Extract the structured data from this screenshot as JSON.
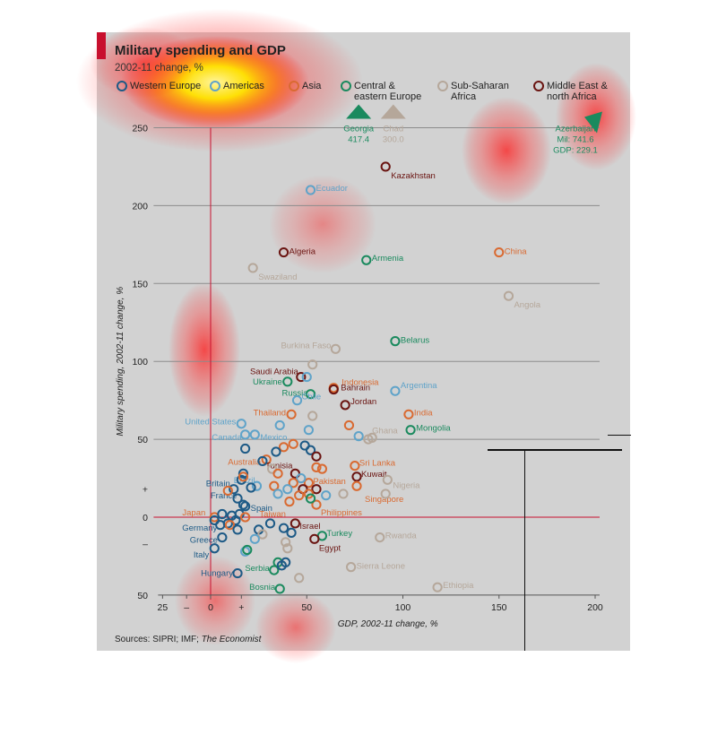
{
  "title": "Military spending and GDP",
  "subtitle": "2002-11 change, %",
  "source": {
    "prefix": "Sources: SIPRI; IMF; ",
    "italic": "The Economist"
  },
  "colors": {
    "western_europe": "#1d5a86",
    "americas": "#5fa3c9",
    "asia": "#d96a31",
    "central_eastern_europe": "#1a8a5e",
    "sub_saharan_africa": "#b5a79a",
    "middle_east_north_africa": "#6a1411",
    "gridline": "#8c8c8c",
    "zero_line": "#c8102e",
    "panel": "#d2d2d2"
  },
  "legend": [
    {
      "key": "western_europe",
      "label": "Western Europe"
    },
    {
      "key": "americas",
      "label": "Americas"
    },
    {
      "key": "asia",
      "label": "Asia"
    },
    {
      "key": "central_eastern_europe",
      "label": "Central & eastern Europe"
    },
    {
      "key": "sub_saharan_africa",
      "label": "Sub-Saharan Africa"
    },
    {
      "key": "middle_east_north_africa",
      "label": "Middle East & north Africa"
    }
  ],
  "chart_data": {
    "type": "scatter",
    "title": "Military spending and GDP",
    "subtitle": "2002-11 change, %",
    "xlabel": "GDP, 2002-11 change, %",
    "ylabel": "Military spending, 2002-11 change, %",
    "xlim": [
      -25,
      200
    ],
    "ylim": [
      -50,
      250
    ],
    "x_ticks": [
      {
        "value": -25,
        "label": "25"
      },
      {
        "value": -12.5,
        "label": "–"
      },
      {
        "value": 0,
        "label": "0"
      },
      {
        "value": 16,
        "label": "+"
      },
      {
        "value": 50,
        "label": "50"
      },
      {
        "value": 100,
        "label": "100"
      },
      {
        "value": 150,
        "label": "150"
      },
      {
        "value": 200,
        "label": "200"
      }
    ],
    "y_ticks": [
      {
        "value": 250,
        "label": "250"
      },
      {
        "value": 200,
        "label": "200"
      },
      {
        "value": 150,
        "label": "150"
      },
      {
        "value": 100,
        "label": "100"
      },
      {
        "value": 50,
        "label": "50"
      },
      {
        "value": 18,
        "label": "+"
      },
      {
        "value": 0,
        "label": "0"
      },
      {
        "value": -17,
        "label": "–"
      },
      {
        "value": -50,
        "label": "50"
      }
    ],
    "gridlines_y": [
      250,
      200,
      150,
      100,
      50
    ],
    "offscale": [
      {
        "name": "Georgia",
        "value": "417.4",
        "x": 77,
        "region": "central_eastern_europe",
        "direction": "up"
      },
      {
        "name": "Chad",
        "value": "300.0",
        "x": 95,
        "region": "sub_saharan_africa",
        "direction": "up"
      },
      {
        "name": "Azerbaijan",
        "mil": "Mil: 741.6",
        "gdp": "GDP: 229.1",
        "x": 200,
        "region": "central_eastern_europe",
        "direction": "up-right"
      }
    ],
    "points": [
      {
        "name": "Kazakhstan",
        "x": 91,
        "y": 225,
        "region": "middle_east_north_africa"
      },
      {
        "name": "Ecuador",
        "x": 52,
        "y": 210,
        "region": "americas"
      },
      {
        "name": "Algeria",
        "x": 38,
        "y": 170,
        "region": "middle_east_north_africa"
      },
      {
        "name": "Armenia",
        "x": 81,
        "y": 165,
        "region": "central_eastern_europe"
      },
      {
        "name": "China",
        "x": 150,
        "y": 170,
        "region": "asia"
      },
      {
        "name": "Swaziland",
        "x": 22,
        "y": 160,
        "region": "sub_saharan_africa"
      },
      {
        "name": "Angola",
        "x": 155,
        "y": 142,
        "region": "sub_saharan_africa"
      },
      {
        "name": "Belarus",
        "x": 96,
        "y": 113,
        "region": "central_eastern_europe"
      },
      {
        "name": "Burkina Faso",
        "x": 65,
        "y": 108,
        "region": "sub_saharan_africa"
      },
      {
        "name": "Saudi Arabia",
        "x": 47,
        "y": 90,
        "region": "middle_east_north_africa"
      },
      {
        "name": "Indonesia",
        "x": 64,
        "y": 83,
        "region": "asia"
      },
      {
        "name": "Ukraine",
        "x": 40,
        "y": 87,
        "region": "central_eastern_europe"
      },
      {
        "name": "Bahrain",
        "x": 64,
        "y": 82,
        "region": "middle_east_north_africa"
      },
      {
        "name": "Russia",
        "x": 52,
        "y": 79,
        "region": "central_eastern_europe"
      },
      {
        "name": "Argentina",
        "x": 96,
        "y": 81,
        "region": "americas"
      },
      {
        "name": "Jordan",
        "x": 70,
        "y": 72,
        "region": "middle_east_north_africa"
      },
      {
        "name": "Chile",
        "x": 45,
        "y": 75,
        "region": "americas"
      },
      {
        "name": "Thailand",
        "x": 42,
        "y": 66,
        "region": "asia"
      },
      {
        "name": "India",
        "x": 103,
        "y": 66,
        "region": "asia"
      },
      {
        "name": "United States",
        "x": 16,
        "y": 60,
        "region": "americas"
      },
      {
        "name": "Mongolia",
        "x": 104,
        "y": 56,
        "region": "central_eastern_europe"
      },
      {
        "name": "Canada",
        "x": 18,
        "y": 53,
        "region": "americas"
      },
      {
        "name": "Mexico",
        "x": 23,
        "y": 53,
        "region": "americas"
      },
      {
        "name": "Ghana",
        "x": 84,
        "y": 51,
        "region": "sub_saharan_africa"
      },
      {
        "name": "Australia",
        "x": 29,
        "y": 37,
        "region": "asia"
      },
      {
        "name": "Sri Lanka",
        "x": 75,
        "y": 33,
        "region": "asia"
      },
      {
        "name": "Tunisia",
        "x": 44,
        "y": 28,
        "region": "middle_east_north_africa"
      },
      {
        "name": "Kuwait",
        "x": 76,
        "y": 26,
        "region": "middle_east_north_africa"
      },
      {
        "name": "Nigeria",
        "x": 92,
        "y": 24,
        "region": "sub_saharan_africa"
      },
      {
        "name": "Britain",
        "x": 12,
        "y": 18,
        "region": "western_europe"
      },
      {
        "name": "Brazil",
        "x": 24,
        "y": 20,
        "region": "americas"
      },
      {
        "name": "Pakistan",
        "x": 51,
        "y": 22,
        "region": "asia"
      },
      {
        "name": "Singapore",
        "x": 76,
        "y": 20,
        "region": "asia"
      },
      {
        "name": "France",
        "x": 17,
        "y": 8,
        "region": "western_europe"
      },
      {
        "name": "Spain",
        "x": 18,
        "y": 7,
        "region": "western_europe"
      },
      {
        "name": "Taiwan",
        "x": 41,
        "y": 10,
        "region": "asia"
      },
      {
        "name": "Philippines",
        "x": 55,
        "y": 8,
        "region": "asia"
      },
      {
        "name": "Japan",
        "x": 2,
        "y": 0,
        "region": "asia"
      },
      {
        "name": "Israel",
        "x": 44,
        "y": -4,
        "region": "middle_east_north_africa"
      },
      {
        "name": "Germany",
        "x": 9,
        "y": -4,
        "region": "western_europe"
      },
      {
        "name": "Turkey",
        "x": 58,
        "y": -12,
        "region": "central_eastern_europe"
      },
      {
        "name": "Rwanda",
        "x": 88,
        "y": -13,
        "region": "sub_saharan_africa"
      },
      {
        "name": "Greece",
        "x": 6,
        "y": -13,
        "region": "western_europe"
      },
      {
        "name": "Egypt",
        "x": 54,
        "y": -14,
        "region": "middle_east_north_africa"
      },
      {
        "name": "Italy",
        "x": 2,
        "y": -20,
        "region": "western_europe"
      },
      {
        "name": "Sierra Leone",
        "x": 73,
        "y": -32,
        "region": "sub_saharan_africa"
      },
      {
        "name": "Serbia",
        "x": 33,
        "y": -34,
        "region": "central_eastern_europe"
      },
      {
        "name": "Hungary",
        "x": 14,
        "y": -36,
        "region": "western_europe"
      },
      {
        "name": "Ethiopia",
        "x": 118,
        "y": -45,
        "region": "sub_saharan_africa"
      },
      {
        "name": "Bosnia",
        "x": 36,
        "y": -46,
        "region": "central_eastern_europe"
      },
      {
        "x": 53,
        "y": 98,
        "region": "sub_saharan_africa"
      },
      {
        "x": 50,
        "y": 90,
        "region": "americas"
      },
      {
        "x": 53,
        "y": 65,
        "region": "sub_saharan_africa"
      },
      {
        "x": 36,
        "y": 59,
        "region": "americas"
      },
      {
        "x": 72,
        "y": 59,
        "region": "asia"
      },
      {
        "x": 51,
        "y": 56,
        "region": "americas"
      },
      {
        "x": 77,
        "y": 52,
        "region": "americas"
      },
      {
        "x": 82,
        "y": 50,
        "region": "sub_saharan_africa"
      },
      {
        "x": 38,
        "y": 45,
        "region": "asia"
      },
      {
        "x": 43,
        "y": 47,
        "region": "asia"
      },
      {
        "x": 49,
        "y": 46,
        "region": "western_europe"
      },
      {
        "x": 52,
        "y": 43,
        "region": "western_europe"
      },
      {
        "x": 18,
        "y": 44,
        "region": "western_europe"
      },
      {
        "x": 34,
        "y": 42,
        "region": "western_europe"
      },
      {
        "x": 55,
        "y": 39,
        "region": "middle_east_north_africa"
      },
      {
        "x": 27,
        "y": 36,
        "region": "western_europe"
      },
      {
        "x": 32,
        "y": 31,
        "region": "sub_saharan_africa"
      },
      {
        "x": 55,
        "y": 32,
        "region": "asia"
      },
      {
        "x": 58,
        "y": 31,
        "region": "asia"
      },
      {
        "x": 17,
        "y": 28,
        "region": "western_europe"
      },
      {
        "x": 16,
        "y": 24,
        "region": "western_europe"
      },
      {
        "x": 17,
        "y": 26,
        "region": "asia"
      },
      {
        "x": 35,
        "y": 28,
        "region": "asia"
      },
      {
        "x": 47,
        "y": 25,
        "region": "americas"
      },
      {
        "x": 43,
        "y": 22,
        "region": "asia"
      },
      {
        "x": 33,
        "y": 20,
        "region": "asia"
      },
      {
        "x": 21,
        "y": 19,
        "region": "western_europe"
      },
      {
        "x": 9,
        "y": 17,
        "region": "asia"
      },
      {
        "x": 40,
        "y": 18,
        "region": "americas"
      },
      {
        "x": 48,
        "y": 18,
        "region": "middle_east_north_africa"
      },
      {
        "x": 55,
        "y": 18,
        "region": "middle_east_north_africa"
      },
      {
        "x": 51,
        "y": 15,
        "region": "asia"
      },
      {
        "x": 35,
        "y": 15,
        "region": "americas"
      },
      {
        "x": 46,
        "y": 14,
        "region": "asia"
      },
      {
        "x": 60,
        "y": 14,
        "region": "americas"
      },
      {
        "x": 69,
        "y": 15,
        "region": "sub_saharan_africa"
      },
      {
        "x": 91,
        "y": 15,
        "region": "sub_saharan_africa"
      },
      {
        "x": 14,
        "y": 12,
        "region": "western_europe"
      },
      {
        "x": 52,
        "y": 12,
        "region": "central_eastern_europe"
      },
      {
        "x": 6,
        "y": 2,
        "region": "western_europe"
      },
      {
        "x": 11,
        "y": 1,
        "region": "western_europe"
      },
      {
        "x": 15,
        "y": 2,
        "region": "western_europe"
      },
      {
        "x": 2,
        "y": -2,
        "region": "western_europe"
      },
      {
        "x": 5,
        "y": -5,
        "region": "western_europe"
      },
      {
        "x": 13,
        "y": -2,
        "region": "western_europe"
      },
      {
        "x": 18,
        "y": 0,
        "region": "asia"
      },
      {
        "x": 10,
        "y": -5,
        "region": "asia"
      },
      {
        "x": 14,
        "y": -8,
        "region": "western_europe"
      },
      {
        "x": 25,
        "y": -8,
        "region": "western_europe"
      },
      {
        "x": 31,
        "y": -4,
        "region": "western_europe"
      },
      {
        "x": 38,
        "y": -7,
        "region": "western_europe"
      },
      {
        "x": 42,
        "y": -10,
        "region": "western_europe"
      },
      {
        "x": 27,
        "y": -11,
        "region": "sub_saharan_africa"
      },
      {
        "x": 23,
        "y": -14,
        "region": "americas"
      },
      {
        "x": 39,
        "y": -16,
        "region": "sub_saharan_africa"
      },
      {
        "x": 40,
        "y": -20,
        "region": "sub_saharan_africa"
      },
      {
        "x": 18,
        "y": -22,
        "region": "americas"
      },
      {
        "x": 19,
        "y": -21,
        "region": "central_eastern_europe"
      },
      {
        "x": 35,
        "y": -29,
        "region": "central_eastern_europe"
      },
      {
        "x": 39,
        "y": -29,
        "region": "western_europe"
      },
      {
        "x": 37,
        "y": -31,
        "region": "western_europe"
      },
      {
        "x": 46,
        "y": -39,
        "region": "sub_saharan_africa"
      }
    ]
  }
}
